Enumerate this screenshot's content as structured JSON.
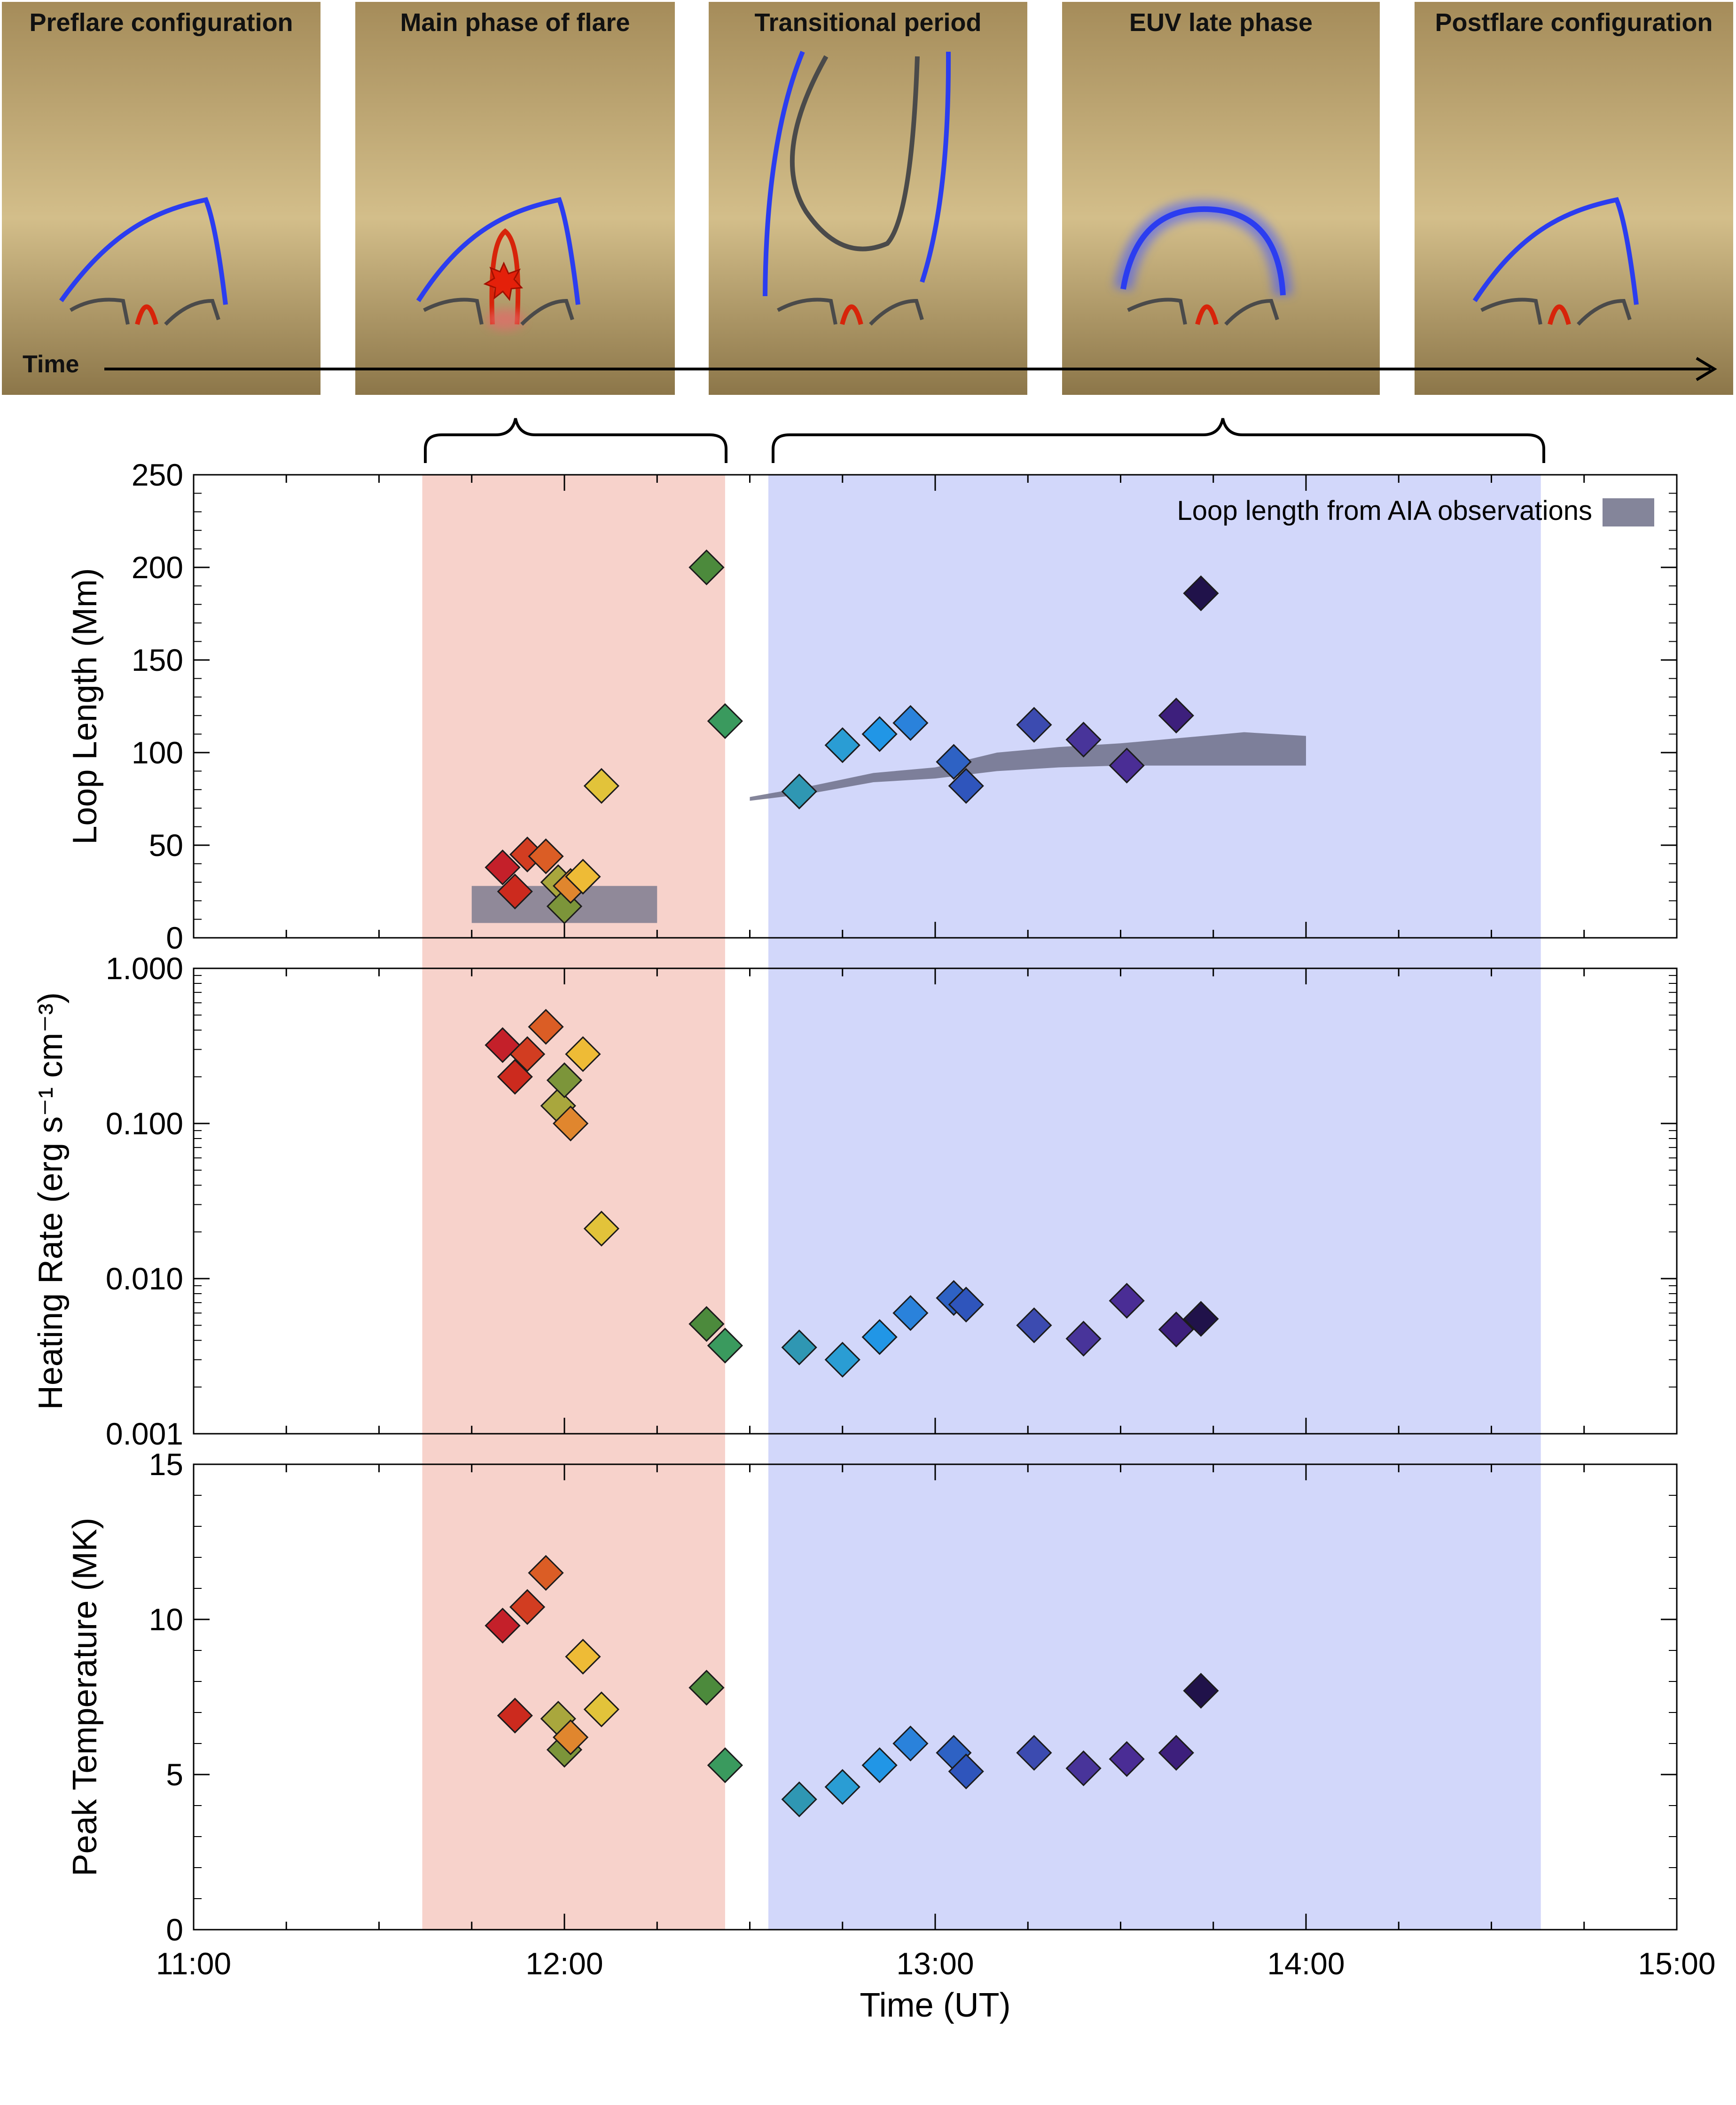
{
  "colors": {
    "main_phase_band": "#f7d2cb",
    "late_phase_band": "#d2d7fa",
    "aia_band": "#6e7088",
    "thumb_bg": "#c9b27a",
    "loop_blue": "#2b3df0",
    "loop_red": "#d7240a",
    "loop_dark": "#4a4a4a"
  },
  "thumbnails": [
    {
      "title": "Preflare configuration"
    },
    {
      "title": "Main phase of flare"
    },
    {
      "title": "Transitional period"
    },
    {
      "title": "EUV late phase"
    },
    {
      "title": "Postflare configuration"
    }
  ],
  "timeline": {
    "label": "Time"
  },
  "chart_data": {
    "type": "scatter",
    "x_axis": {
      "label": "Time (UT)",
      "range": [
        "11:00",
        "15:00"
      ],
      "ticks": [
        "11:00",
        "12:00",
        "13:00",
        "14:00",
        "15:00"
      ]
    },
    "phases": [
      {
        "name": "main phase of flare",
        "start": "11:37",
        "end": "12:26",
        "color": "#f7d2cb"
      },
      {
        "name": "EUV late phase",
        "start": "12:33",
        "end": "14:38",
        "color": "#d2d7fa"
      }
    ],
    "points": [
      {
        "time": "11:50",
        "length": 38,
        "heating": 0.32,
        "temperature": 9.8,
        "color": "#c4202a"
      },
      {
        "time": "11:52",
        "length": 25,
        "heating": 0.2,
        "temperature": 6.9,
        "color": "#cc2a1e"
      },
      {
        "time": "11:54",
        "length": 45,
        "heating": 0.28,
        "temperature": 10.4,
        "color": "#d23d21"
      },
      {
        "time": "11:57",
        "length": 44,
        "heating": 0.42,
        "temperature": 11.5,
        "color": "#db5d25"
      },
      {
        "time": "11:59",
        "length": 30,
        "heating": 0.13,
        "temperature": 6.8,
        "color": "#a9a73d"
      },
      {
        "time": "12:00",
        "length": 17,
        "heating": 0.19,
        "temperature": 5.8,
        "color": "#7c953a"
      },
      {
        "time": "12:01",
        "length": 28,
        "heating": 0.1,
        "temperature": 6.2,
        "color": "#e0862e"
      },
      {
        "time": "12:03",
        "length": 33,
        "heating": 0.28,
        "temperature": 8.8,
        "color": "#eebb36"
      },
      {
        "time": "12:06",
        "length": 82,
        "heating": 0.021,
        "temperature": 7.1,
        "color": "#e2c33a"
      },
      {
        "time": "12:23",
        "length": 200,
        "heating": 0.0051,
        "temperature": 7.8,
        "color": "#4c8a3c"
      },
      {
        "time": "12:26",
        "length": 117,
        "heating": 0.0037,
        "temperature": 5.3,
        "color": "#3a9a5e"
      },
      {
        "time": "12:38",
        "length": 79,
        "heating": 0.0036,
        "temperature": 4.2,
        "color": "#2f97b3"
      },
      {
        "time": "12:45",
        "length": 104,
        "heating": 0.003,
        "temperature": 4.6,
        "color": "#2a9dd4"
      },
      {
        "time": "12:51",
        "length": 110,
        "heating": 0.0042,
        "temperature": 5.3,
        "color": "#2196e6"
      },
      {
        "time": "12:56",
        "length": 116,
        "heating": 0.006,
        "temperature": 6.0,
        "color": "#2a82db"
      },
      {
        "time": "13:03",
        "length": 95,
        "heating": 0.0075,
        "temperature": 5.7,
        "color": "#2e62c4"
      },
      {
        "time": "13:05",
        "length": 82,
        "heating": 0.0068,
        "temperature": 5.1,
        "color": "#2f55bc"
      },
      {
        "time": "13:16",
        "length": 115,
        "heating": 0.005,
        "temperature": 5.7,
        "color": "#3c4bb0"
      },
      {
        "time": "13:24",
        "length": 107,
        "heating": 0.0041,
        "temperature": 5.2,
        "color": "#48349a"
      },
      {
        "time": "13:31",
        "length": 93,
        "heating": 0.0072,
        "temperature": 5.5,
        "color": "#4a2d95"
      },
      {
        "time": "13:39",
        "length": 120,
        "heating": 0.0047,
        "temperature": 5.7,
        "color": "#3d1f7c"
      },
      {
        "time": "13:43",
        "length": 186,
        "heating": 0.0055,
        "temperature": 7.7,
        "color": "#20124a"
      }
    ],
    "aia_loop_length": {
      "legend": "Loop length from AIA observations",
      "main_phase_box": {
        "start": "11:45",
        "end": "12:15",
        "low": 8,
        "high": 28
      },
      "late_phase_band": [
        {
          "time": "12:30",
          "low": 74,
          "high": 76
        },
        {
          "time": "12:40",
          "low": 78,
          "high": 82
        },
        {
          "time": "12:50",
          "low": 84,
          "high": 89
        },
        {
          "time": "13:00",
          "low": 86,
          "high": 92
        },
        {
          "time": "13:10",
          "low": 90,
          "high": 100
        },
        {
          "time": "13:20",
          "low": 92,
          "high": 103
        },
        {
          "time": "13:30",
          "low": 93,
          "high": 105
        },
        {
          "time": "13:40",
          "low": 93,
          "high": 108
        },
        {
          "time": "13:50",
          "low": 93,
          "high": 111
        },
        {
          "time": "14:00",
          "low": 93,
          "high": 109
        }
      ]
    },
    "panels": [
      {
        "id": "length",
        "ylabel": "Loop Length (Mm)",
        "scale": "linear",
        "ylim": [
          0,
          250
        ],
        "ticks": [
          0,
          50,
          100,
          150,
          200,
          250
        ],
        "tick_labels": [
          "0",
          "50",
          "100",
          "150",
          "200",
          "250"
        ]
      },
      {
        "id": "heating",
        "ylabel": "Heating Rate (erg s⁻¹ cm⁻³)",
        "scale": "log",
        "ylim": [
          0.001,
          1.0
        ],
        "ticks": [
          0.001,
          0.01,
          0.1,
          1.0
        ],
        "tick_labels": [
          "0.001",
          "0.010",
          "0.100",
          "1.000"
        ]
      },
      {
        "id": "temperature",
        "ylabel": "Peak Temperature (MK)",
        "scale": "linear",
        "ylim": [
          0,
          15
        ],
        "ticks": [
          0,
          5,
          10,
          15
        ],
        "tick_labels": [
          "0",
          "5",
          "10",
          "15"
        ]
      }
    ]
  }
}
